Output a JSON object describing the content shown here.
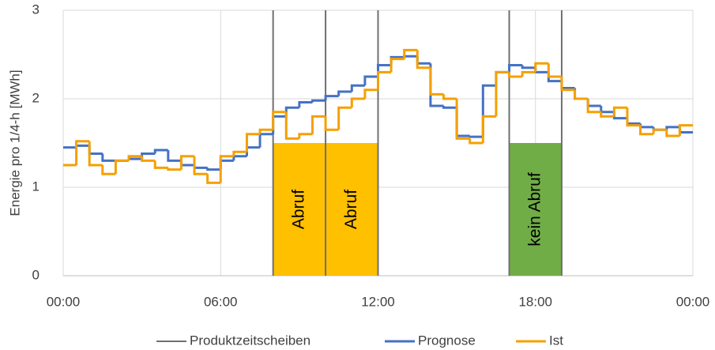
{
  "chart_data": {
    "type": "step",
    "y_label": "Energie pro 1/4-h [MWh]",
    "xlim": [
      0,
      24
    ],
    "xticks": [
      {
        "value": 0,
        "label": "00:00"
      },
      {
        "value": 6,
        "label": "06:00"
      },
      {
        "value": 12,
        "label": "12:00"
      },
      {
        "value": 18,
        "label": "18:00"
      },
      {
        "value": 24,
        "label": "00:00"
      }
    ],
    "ylim": [
      0,
      3
    ],
    "yticks": [
      0,
      1,
      2,
      3
    ],
    "grid": true,
    "legend": "bottom",
    "product_lines": {
      "name": "Produktzeitscheiben",
      "color": "#707070",
      "x": [
        8,
        10,
        12,
        17,
        19
      ]
    },
    "annotations": [
      {
        "label": "Abruf",
        "x0": 8,
        "x1": 10,
        "height": 1.5,
        "color": "#ffc000"
      },
      {
        "label": "Abruf",
        "x0": 10,
        "x1": 12,
        "height": 1.5,
        "color": "#ffc000"
      },
      {
        "label": "kein Abruf",
        "x0": 17,
        "x1": 19,
        "height": 1.5,
        "color": "#70ad47"
      }
    ],
    "x": [
      0,
      0.5,
      1,
      1.5,
      2,
      2.5,
      3,
      3.5,
      4,
      4.5,
      5,
      5.5,
      6,
      6.5,
      7,
      7.5,
      8,
      8.5,
      9,
      9.5,
      10,
      10.5,
      11,
      11.5,
      12,
      12.5,
      13,
      13.5,
      14,
      14.5,
      15,
      15.5,
      16,
      16.5,
      17,
      17.5,
      18,
      18.5,
      19,
      19.5,
      20,
      20.5,
      21,
      21.5,
      22,
      22.5,
      23,
      23.5
    ],
    "series": [
      {
        "name": "Prognose",
        "color": "#4472c4",
        "values": [
          1.45,
          1.47,
          1.38,
          1.3,
          1.3,
          1.32,
          1.38,
          1.42,
          1.3,
          1.25,
          1.22,
          1.2,
          1.3,
          1.35,
          1.45,
          1.6,
          1.8,
          1.9,
          1.96,
          1.98,
          2.03,
          2.08,
          2.15,
          2.25,
          2.38,
          2.47,
          2.48,
          2.4,
          1.92,
          1.9,
          1.58,
          1.57,
          2.15,
          2.3,
          2.38,
          2.35,
          2.3,
          2.2,
          2.12,
          2.0,
          1.92,
          1.85,
          1.78,
          1.72,
          1.68,
          1.65,
          1.68,
          1.62
        ]
      },
      {
        "name": "Ist",
        "color": "#f5a000",
        "values": [
          1.25,
          1.52,
          1.25,
          1.15,
          1.3,
          1.35,
          1.3,
          1.22,
          1.2,
          1.35,
          1.15,
          1.05,
          1.35,
          1.4,
          1.6,
          1.65,
          1.85,
          1.55,
          1.6,
          1.8,
          1.65,
          1.9,
          2.0,
          2.1,
          2.3,
          2.45,
          2.55,
          2.35,
          2.05,
          2.0,
          1.55,
          1.5,
          1.8,
          2.3,
          2.25,
          2.3,
          2.4,
          2.25,
          2.1,
          2.0,
          1.85,
          1.8,
          1.9,
          1.7,
          1.6,
          1.65,
          1.58,
          1.7
        ]
      }
    ]
  }
}
